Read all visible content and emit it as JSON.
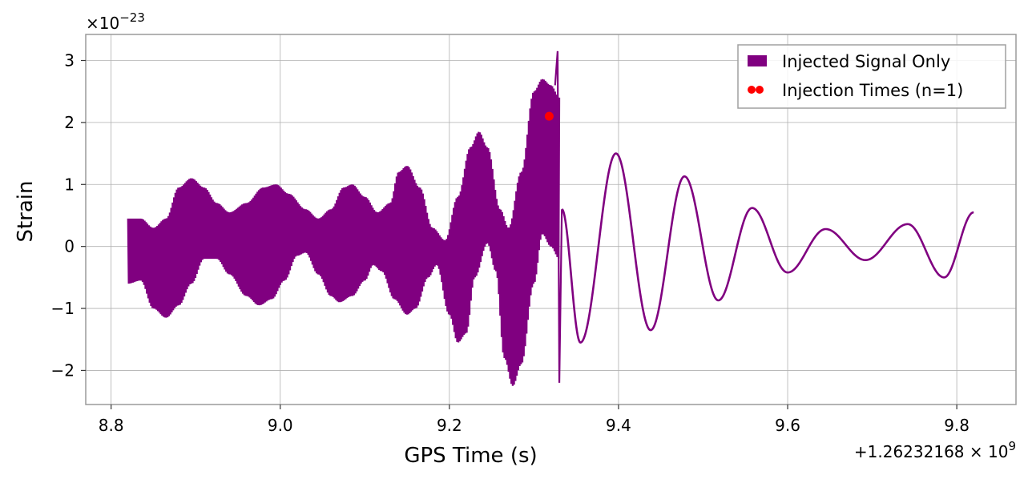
{
  "chart_data": {
    "type": "line",
    "xlabel": "GPS Time (s)",
    "ylabel": "Strain",
    "x_offset_label": "+1.26232168 × 10",
    "x_offset_exp": "9",
    "y_scale_label": "×10",
    "y_scale_exp": "−23",
    "xlim": [
      8.77,
      9.87
    ],
    "ylim": [
      -2.55,
      3.42
    ],
    "x_ticks": [
      8.8,
      9.0,
      9.2,
      9.4,
      9.6,
      9.8
    ],
    "x_tick_labels": [
      "8.8",
      "9.0",
      "9.2",
      "9.4",
      "9.6",
      "9.8"
    ],
    "y_ticks": [
      -2,
      -1,
      0,
      1,
      2,
      3
    ],
    "y_tick_labels": [
      "−2",
      "−1",
      "0",
      "1",
      "2",
      "3"
    ],
    "grid": true,
    "legend": "top-right",
    "series": [
      {
        "name": "Injected Signal Only",
        "color": "#800080",
        "kind": "line",
        "envelope_segment": {
          "x_range": [
            8.82,
            9.33
          ],
          "upper": [
            [
              8.82,
              0.45
            ],
            [
              8.835,
              0.45
            ],
            [
              8.85,
              0.3
            ],
            [
              8.865,
              0.45
            ],
            [
              8.88,
              0.95
            ],
            [
              8.895,
              1.1
            ],
            [
              8.91,
              0.95
            ],
            [
              8.925,
              0.7
            ],
            [
              8.94,
              0.55
            ],
            [
              8.96,
              0.7
            ],
            [
              8.98,
              0.95
            ],
            [
              8.995,
              1.0
            ],
            [
              9.01,
              0.85
            ],
            [
              9.03,
              0.6
            ],
            [
              9.045,
              0.45
            ],
            [
              9.06,
              0.6
            ],
            [
              9.075,
              0.95
            ],
            [
              9.085,
              1.0
            ],
            [
              9.1,
              0.8
            ],
            [
              9.115,
              0.55
            ],
            [
              9.13,
              0.7
            ],
            [
              9.14,
              1.2
            ],
            [
              9.15,
              1.3
            ],
            [
              9.165,
              0.95
            ],
            [
              9.18,
              0.3
            ],
            [
              9.195,
              0.1
            ],
            [
              9.21,
              0.8
            ],
            [
              9.225,
              1.6
            ],
            [
              9.235,
              1.85
            ],
            [
              9.245,
              1.6
            ],
            [
              9.26,
              0.6
            ],
            [
              9.27,
              0.3
            ],
            [
              9.285,
              1.2
            ],
            [
              9.3,
              2.5
            ],
            [
              9.31,
              2.7
            ],
            [
              9.32,
              2.6
            ],
            [
              9.33,
              2.4
            ]
          ],
          "lower": [
            [
              8.82,
              -0.6
            ],
            [
              8.835,
              -0.55
            ],
            [
              8.85,
              -1.0
            ],
            [
              8.865,
              -1.15
            ],
            [
              8.88,
              -0.95
            ],
            [
              8.895,
              -0.6
            ],
            [
              8.91,
              -0.2
            ],
            [
              8.925,
              -0.2
            ],
            [
              8.94,
              -0.45
            ],
            [
              8.96,
              -0.8
            ],
            [
              8.975,
              -0.95
            ],
            [
              8.99,
              -0.85
            ],
            [
              9.005,
              -0.55
            ],
            [
              9.02,
              -0.15
            ],
            [
              9.03,
              -0.1
            ],
            [
              9.045,
              -0.45
            ],
            [
              9.06,
              -0.8
            ],
            [
              9.07,
              -0.9
            ],
            [
              9.085,
              -0.8
            ],
            [
              9.1,
              -0.55
            ],
            [
              9.11,
              -0.3
            ],
            [
              9.12,
              -0.4
            ],
            [
              9.135,
              -0.85
            ],
            [
              9.15,
              -1.1
            ],
            [
              9.16,
              -1.0
            ],
            [
              9.175,
              -0.5
            ],
            [
              9.185,
              -0.3
            ],
            [
              9.2,
              -1.1
            ],
            [
              9.21,
              -1.55
            ],
            [
              9.22,
              -1.4
            ],
            [
              9.23,
              -0.5
            ],
            [
              9.245,
              0.05
            ],
            [
              9.255,
              -0.4
            ],
            [
              9.265,
              -1.8
            ],
            [
              9.275,
              -2.25
            ],
            [
              9.285,
              -1.9
            ],
            [
              9.3,
              -0.6
            ],
            [
              9.31,
              0.2
            ],
            [
              9.32,
              0.0
            ],
            [
              9.33,
              -0.2
            ]
          ]
        },
        "spike": [
          [
            9.325,
            2.6
          ],
          [
            9.328,
            3.15
          ],
          [
            9.33,
            -2.2
          ],
          [
            9.333,
            0.6
          ]
        ],
        "smooth_segment": {
          "x_range": [
            9.333,
            9.82
          ],
          "extrema": [
            [
              9.333,
              0.6
            ],
            [
              9.355,
              -1.55
            ],
            [
              9.397,
              1.5
            ],
            [
              9.438,
              -1.35
            ],
            [
              9.478,
              1.13
            ],
            [
              9.518,
              -0.87
            ],
            [
              9.558,
              0.62
            ],
            [
              9.6,
              -0.42
            ],
            [
              9.645,
              0.28
            ],
            [
              9.692,
              -0.22
            ],
            [
              9.742,
              0.36
            ],
            [
              9.785,
              -0.5
            ],
            [
              9.82,
              0.55
            ]
          ]
        }
      },
      {
        "name": "Injection Times (n=1)",
        "color": "#ff0000",
        "kind": "scatter",
        "points": [
          [
            9.318,
            2.1
          ]
        ]
      }
    ]
  }
}
